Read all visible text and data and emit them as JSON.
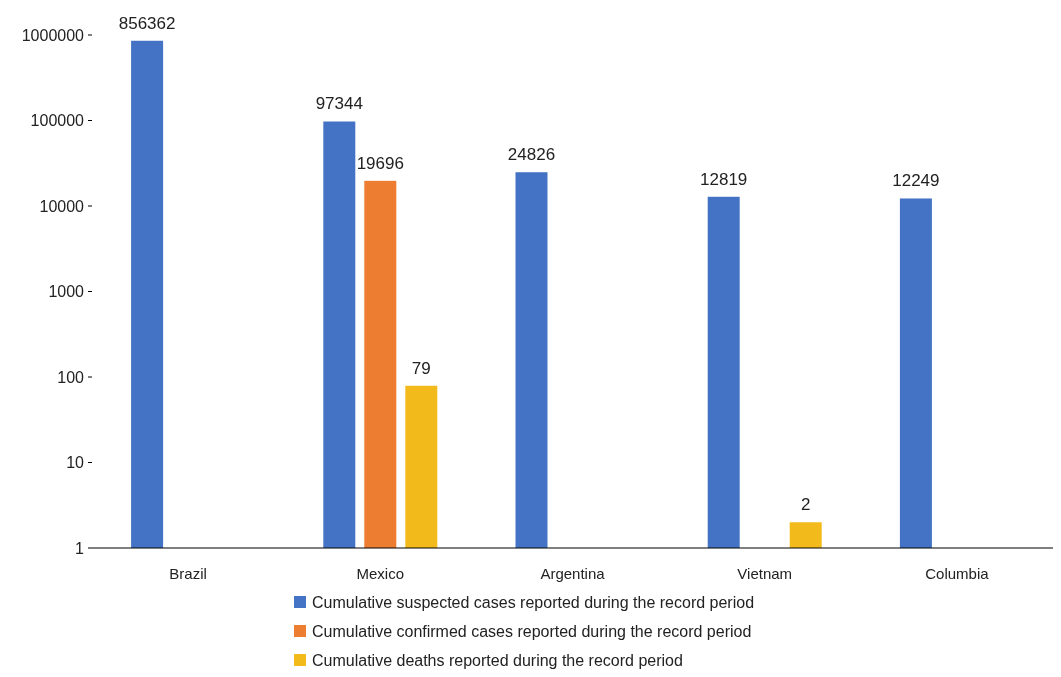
{
  "chart_data": {
    "type": "bar",
    "categories": [
      "Brazil",
      "Mexico",
      "Argentina",
      "Vietnam",
      "Columbia"
    ],
    "series": [
      {
        "name": "Cumulative suspected cases reported during the record period",
        "color": "#4472c4",
        "values": [
          856362,
          97344,
          24826,
          12819,
          12249
        ]
      },
      {
        "name": "Cumulative confirmed cases reported during the record period",
        "color": "#ed7d31",
        "values": [
          null,
          19696,
          null,
          null,
          null
        ]
      },
      {
        "name": "Cumulative deaths reported during the record period",
        "color": "#f2bb1b",
        "values": [
          null,
          79,
          null,
          2,
          null
        ]
      }
    ],
    "log": true,
    "ylim": [
      1,
      1000000
    ],
    "yticks": [
      1,
      10,
      100,
      1000,
      10000,
      100000,
      1000000
    ],
    "data_labels": true,
    "legend": "bottom",
    "grid": false
  }
}
